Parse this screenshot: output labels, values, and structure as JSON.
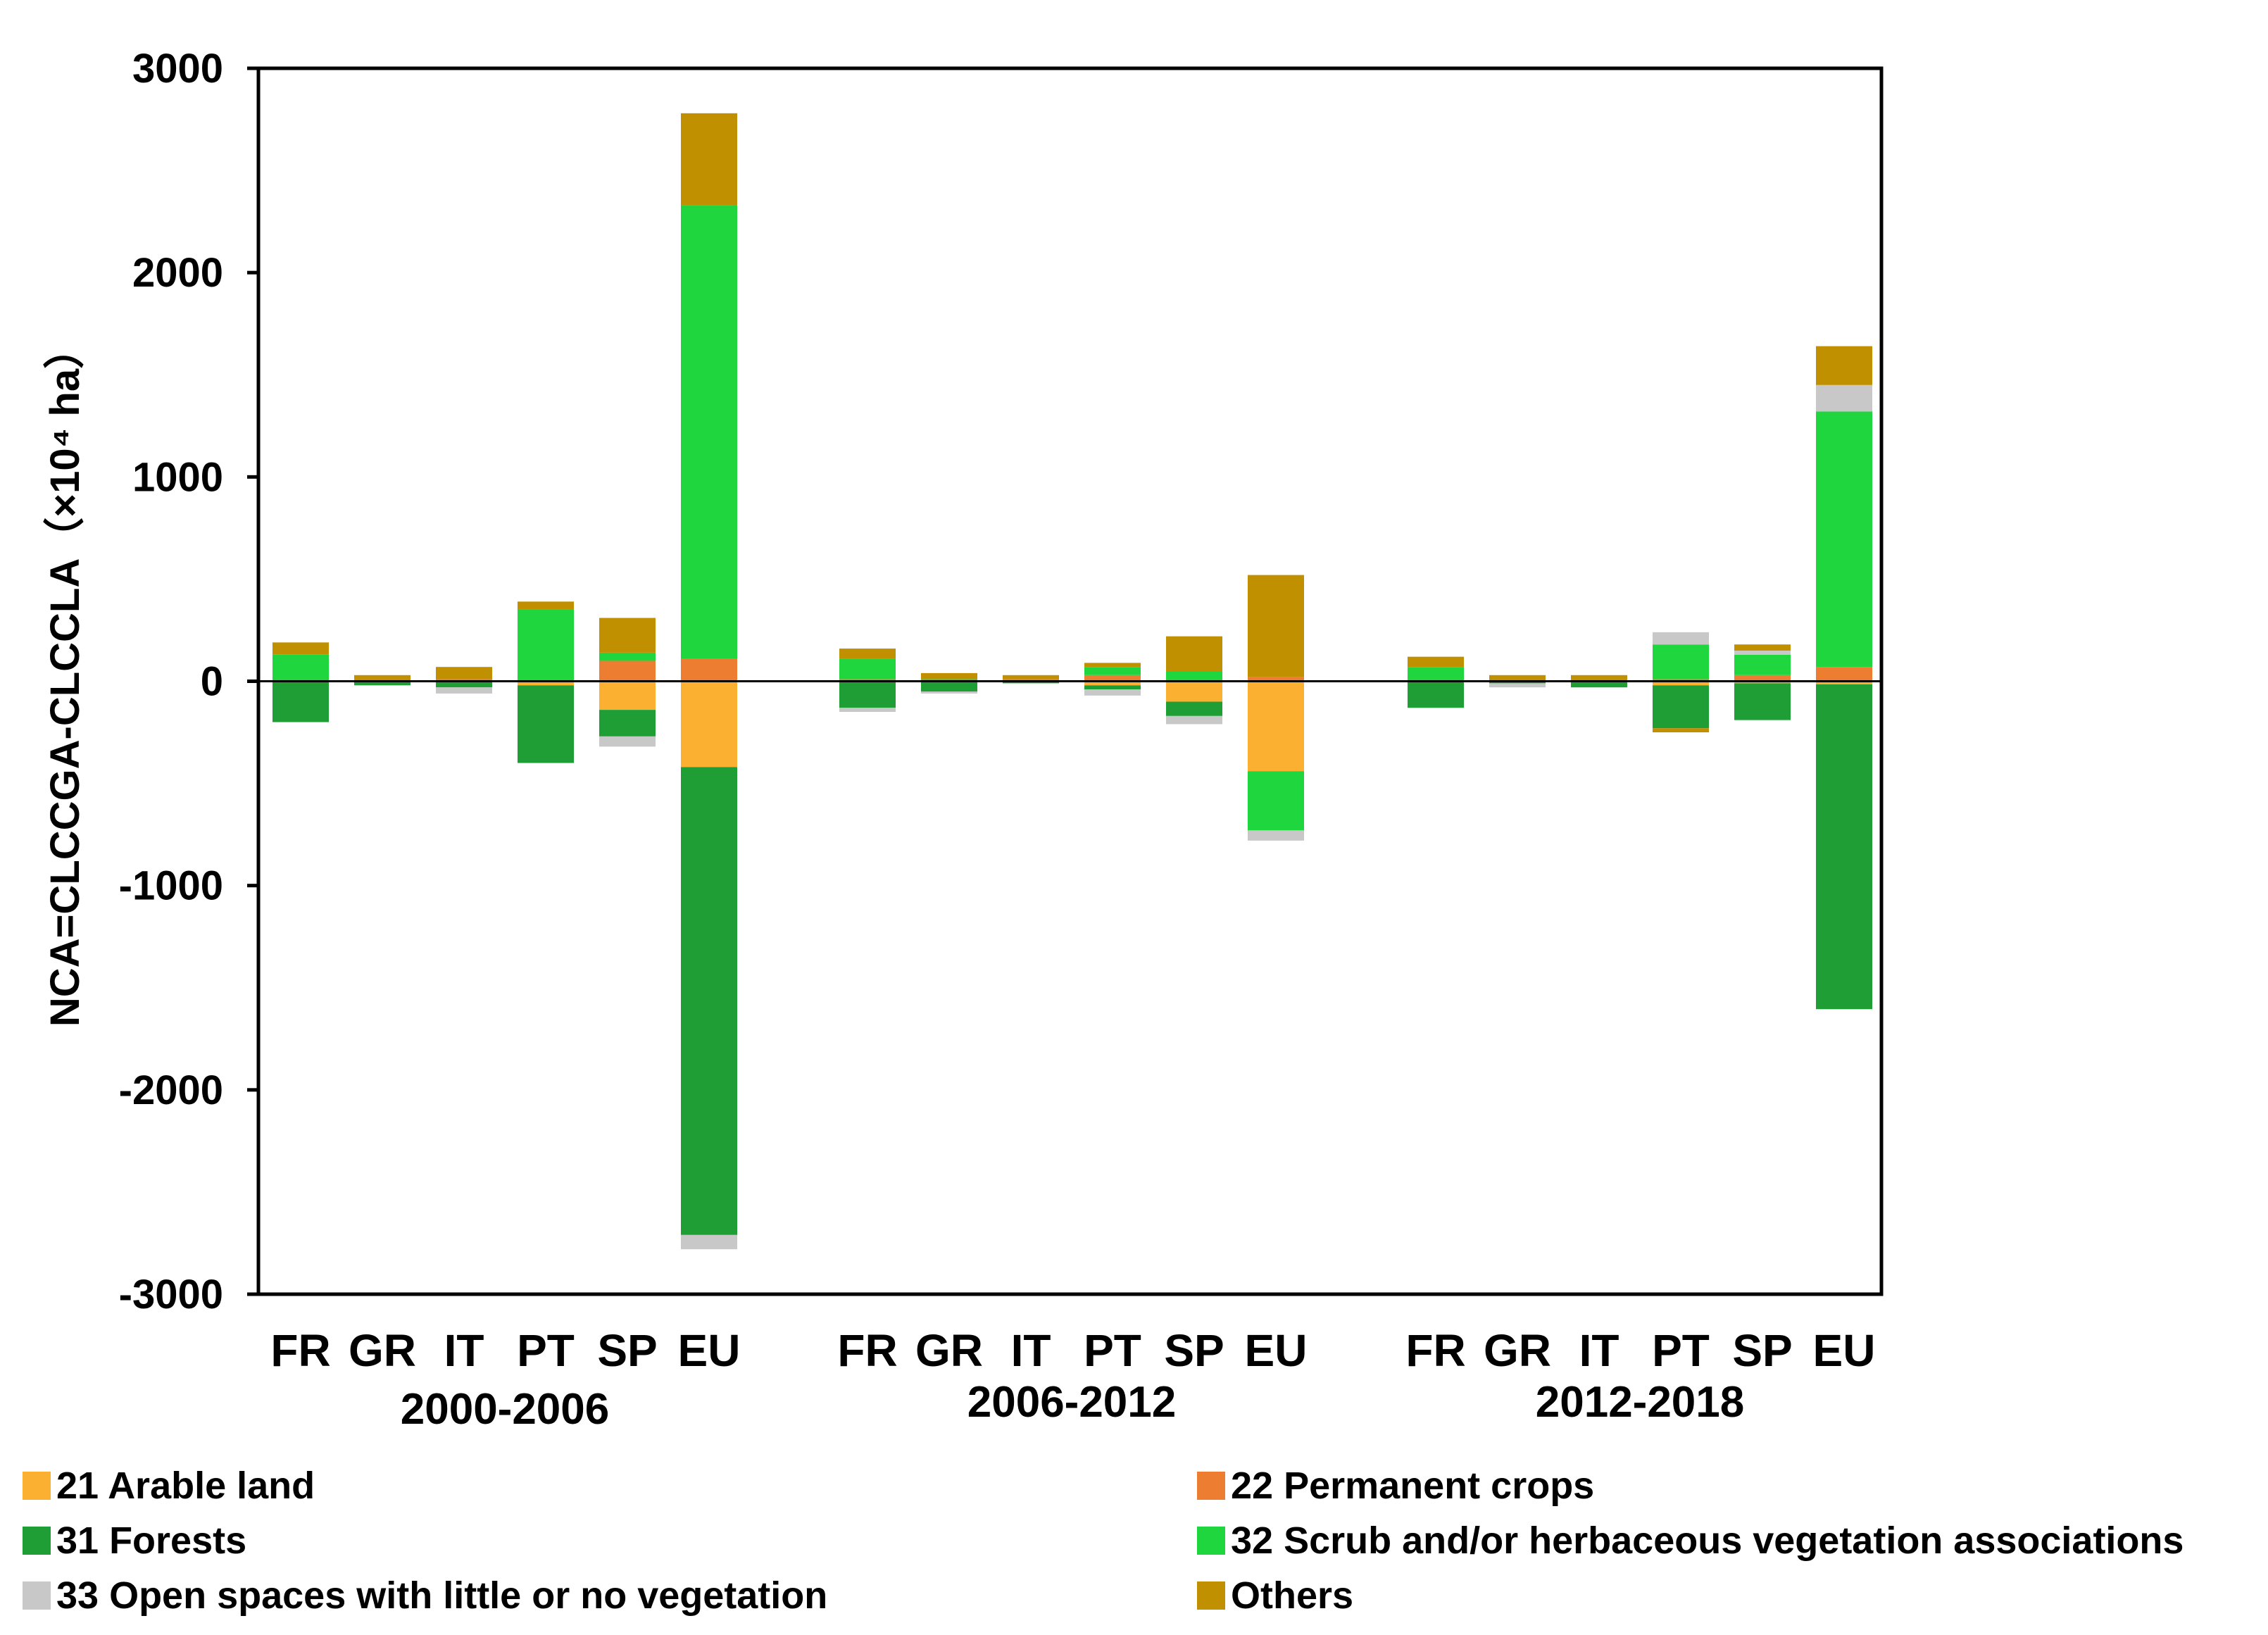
{
  "chart_data": {
    "type": "bar",
    "stacked": true,
    "ylabel": "NCA=CLCCGA-CLCCLA（×10⁴ ha）",
    "ylim": [
      -3000,
      3000
    ],
    "yticks": [
      3000,
      2000,
      1000,
      0,
      -1000,
      -2000,
      -3000
    ],
    "yticks_text": [
      "3000",
      "2000",
      "1000",
      "0",
      "-1000",
      "-2000",
      "-3000"
    ],
    "groups": [
      {
        "period": "2000-2006",
        "categories": [
          "FR",
          "GR",
          "IT",
          "PT",
          "SP",
          "EU"
        ]
      },
      {
        "period": "2006-2012",
        "categories": [
          "FR",
          "GR",
          "IT",
          "PT",
          "SP",
          "EU"
        ]
      },
      {
        "period": "2012-2018",
        "categories": [
          "FR",
          "GR",
          "IT",
          "PT",
          "SP",
          "EU"
        ]
      }
    ],
    "series": [
      {
        "name": "21 Arable land",
        "color": "#FBB031",
        "values": [
          [
            0,
            0,
            0,
            -20,
            -140,
            -420
          ],
          [
            0,
            0,
            0,
            -20,
            -100,
            -440
          ],
          [
            0,
            0,
            0,
            -20,
            -10,
            -15
          ]
        ]
      },
      {
        "name": "22 Permanent crops",
        "color": "#ED7D31",
        "values": [
          [
            0,
            0,
            10,
            0,
            100,
            110
          ],
          [
            10,
            0,
            10,
            30,
            0,
            20
          ],
          [
            0,
            0,
            0,
            10,
            30,
            70
          ]
        ]
      },
      {
        "name": "31 Forests",
        "color": "#1E9E35",
        "values": [
          [
            -200,
            -20,
            -30,
            -380,
            -130,
            -2290
          ],
          [
            -130,
            -50,
            -10,
            -20,
            -70,
            0
          ],
          [
            -130,
            -10,
            -30,
            -210,
            -180,
            -1590
          ]
        ]
      },
      {
        "name": "32 Scrub and/or herbaceous vegetation associations",
        "color": "#20D63F",
        "values": [
          [
            130,
            0,
            0,
            350,
            40,
            2220
          ],
          [
            100,
            10,
            0,
            40,
            50,
            -290
          ],
          [
            70,
            0,
            0,
            170,
            100,
            1250
          ]
        ]
      },
      {
        "name": "33 Open spaces with little or no vegetation",
        "color": "#C8C8C8",
        "values": [
          [
            0,
            0,
            -30,
            0,
            -50,
            -70
          ],
          [
            -20,
            -10,
            0,
            -30,
            -40,
            -50
          ],
          [
            0,
            -20,
            0,
            60,
            20,
            130
          ]
        ]
      },
      {
        "name": "Others",
        "color": "#C09000",
        "values": [
          [
            60,
            30,
            60,
            40,
            170,
            450
          ],
          [
            50,
            30,
            20,
            20,
            170,
            500
          ],
          [
            50,
            30,
            30,
            -20,
            30,
            190
          ]
        ]
      }
    ],
    "legend_position": "bottom"
  }
}
